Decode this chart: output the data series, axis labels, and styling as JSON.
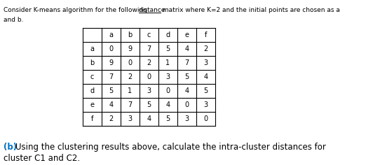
{
  "title_part1": "Consider K-means algorithm for the following ",
  "title_underline": "distance",
  "title_part2": " matrix where K=2 and the initial points are chosen as a",
  "title_line2": "and b.",
  "col_headers": [
    "",
    "a",
    "b",
    "c",
    "d",
    "e",
    "f"
  ],
  "row_headers": [
    "a",
    "b",
    "c",
    "d",
    "e",
    "f"
  ],
  "matrix": [
    [
      0,
      9,
      7,
      5,
      4,
      2
    ],
    [
      9,
      0,
      2,
      1,
      7,
      3
    ],
    [
      7,
      2,
      0,
      3,
      5,
      4
    ],
    [
      5,
      1,
      3,
      0,
      4,
      5
    ],
    [
      4,
      7,
      5,
      4,
      0,
      3
    ],
    [
      2,
      3,
      4,
      5,
      3,
      0
    ]
  ],
  "footer_b": "(b)",
  "footer_text": "   Using the clustering results above, calculate the intra-cluster distances for",
  "footer_line2": "cluster C1 and C2.",
  "footer_color": "#0070c0",
  "text_color": "#000000",
  "bg_color": "#ffffff"
}
